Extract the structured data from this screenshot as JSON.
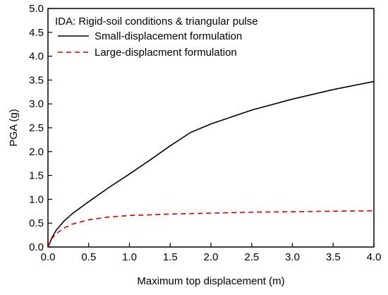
{
  "chart_data": {
    "type": "line",
    "title": "",
    "legend_title": "IDA: Rigid-soil conditions & triangular pulse",
    "legend_position": "top-left",
    "xlabel": "Maximum top displacement (m)",
    "ylabel": "PGA (g)",
    "xlim": [
      0,
      4.0
    ],
    "ylim": [
      0,
      5.0
    ],
    "x_ticks": [
      "0.0",
      "0.5",
      "1.0",
      "1.5",
      "2.0",
      "2.5",
      "3.0",
      "3.5",
      "4.0"
    ],
    "y_ticks": [
      "0.0",
      "0.5",
      "1.0",
      "1.5",
      "2.0",
      "2.5",
      "3.0",
      "3.5",
      "4.0",
      "4.5",
      "5.0"
    ],
    "grid": false,
    "series": [
      {
        "name": "Small-displacement formulation",
        "color": "#000000",
        "style": "solid",
        "points": [
          [
            0.0,
            0.0
          ],
          [
            0.05,
            0.2
          ],
          [
            0.1,
            0.35
          ],
          [
            0.2,
            0.55
          ],
          [
            0.3,
            0.7
          ],
          [
            0.5,
            0.95
          ],
          [
            0.75,
            1.25
          ],
          [
            1.0,
            1.53
          ],
          [
            1.25,
            1.82
          ],
          [
            1.5,
            2.12
          ],
          [
            1.75,
            2.4
          ],
          [
            2.0,
            2.58
          ],
          [
            2.5,
            2.87
          ],
          [
            3.0,
            3.1
          ],
          [
            3.5,
            3.3
          ],
          [
            4.0,
            3.47
          ]
        ]
      },
      {
        "name": "Large-displacment formulation",
        "color": "#cc0000",
        "style": "dashed",
        "points": [
          [
            0.0,
            0.0
          ],
          [
            0.05,
            0.18
          ],
          [
            0.1,
            0.28
          ],
          [
            0.2,
            0.4
          ],
          [
            0.3,
            0.48
          ],
          [
            0.5,
            0.57
          ],
          [
            0.75,
            0.63
          ],
          [
            1.0,
            0.66
          ],
          [
            1.5,
            0.69
          ],
          [
            2.0,
            0.71
          ],
          [
            2.5,
            0.73
          ],
          [
            3.0,
            0.74
          ],
          [
            3.5,
            0.75
          ],
          [
            4.0,
            0.76
          ]
        ]
      }
    ]
  }
}
